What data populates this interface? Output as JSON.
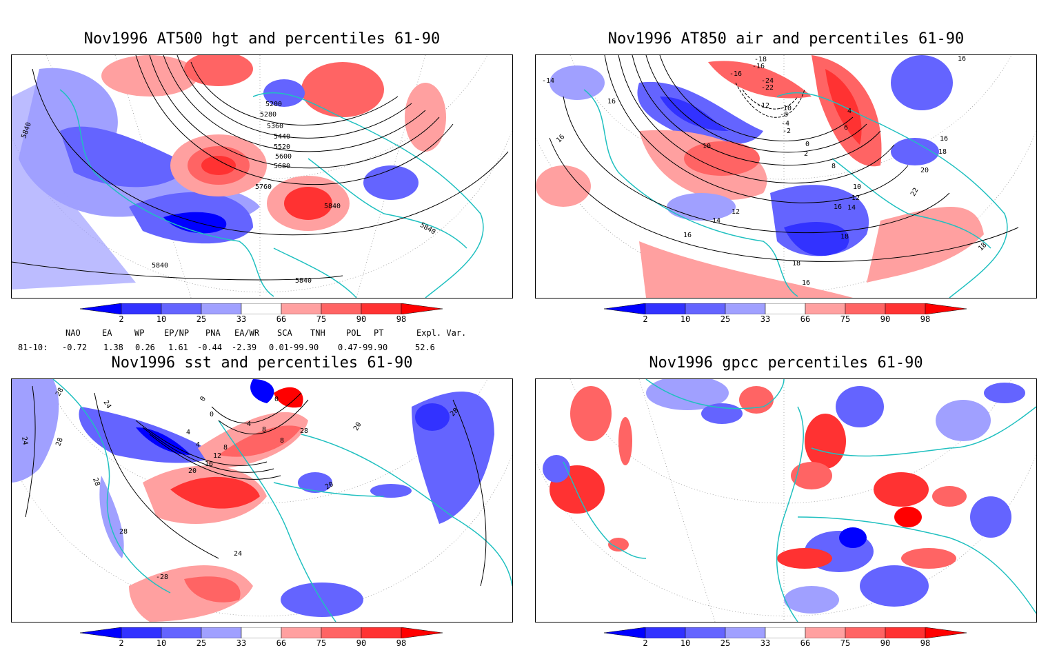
{
  "panels": [
    {
      "title": "Nov1996 AT500 hgt and percentiles 61-90",
      "contour_labels": [
        "5200",
        "5280",
        "5360",
        "5440",
        "5520",
        "5600",
        "5680",
        "5760",
        "5840",
        "5840",
        "5840",
        "5840",
        "5840"
      ]
    },
    {
      "title": "Nov1996 AT850 air and percentiles 61-90",
      "contour_labels": [
        "-18",
        "-16",
        "-16",
        "-24",
        "-22",
        "-12",
        "-10",
        "-8",
        "-4",
        "-2",
        "0",
        "2",
        "4",
        "6",
        "8",
        "10",
        "10",
        "12",
        "12",
        "14",
        "14",
        "16",
        "16",
        "16",
        "16",
        "16",
        "16",
        "16",
        "18",
        "18",
        "18",
        "18",
        "20",
        "22",
        "-14"
      ]
    },
    {
      "title": "Nov1996 sst and percentiles 61-90",
      "contour_labels": [
        "28",
        "24",
        "24",
        "28",
        "28",
        "28",
        "28",
        "0",
        "0",
        "0",
        "4",
        "4",
        "4",
        "8",
        "8",
        "8",
        "12",
        "16",
        "20",
        "20",
        "20",
        "24",
        "-28",
        "28"
      ]
    },
    {
      "title": "Nov1996 gpcc percentiles 61-90",
      "contour_labels": []
    }
  ],
  "colorbar": {
    "labels": [
      "2",
      "10",
      "25",
      "33",
      "66",
      "75",
      "90",
      "98"
    ],
    "colors": [
      "#0000ff",
      "#3232ff",
      "#6464ff",
      "#a0a0ff",
      "#ffffff",
      "#ffa0a0",
      "#ff6464",
      "#ff3232",
      "#ff0000"
    ]
  },
  "indices": {
    "row_label": "81-10:",
    "headers": [
      "NAO",
      "EA",
      "WP",
      "EP/NP",
      "PNA",
      "EA/WR",
      "SCA",
      "TNH",
      "POL",
      "PT",
      "Expl. Var."
    ],
    "values": [
      "-0.72",
      "1.38",
      "0.26",
      "1.61",
      "-0.44",
      "-2.39",
      "0.01-99.90",
      "",
      "0.47-99.90",
      "",
      "52.6"
    ]
  },
  "colors": {
    "coast": "#20c0c0",
    "contour": "#000000",
    "grid": "#888888"
  }
}
